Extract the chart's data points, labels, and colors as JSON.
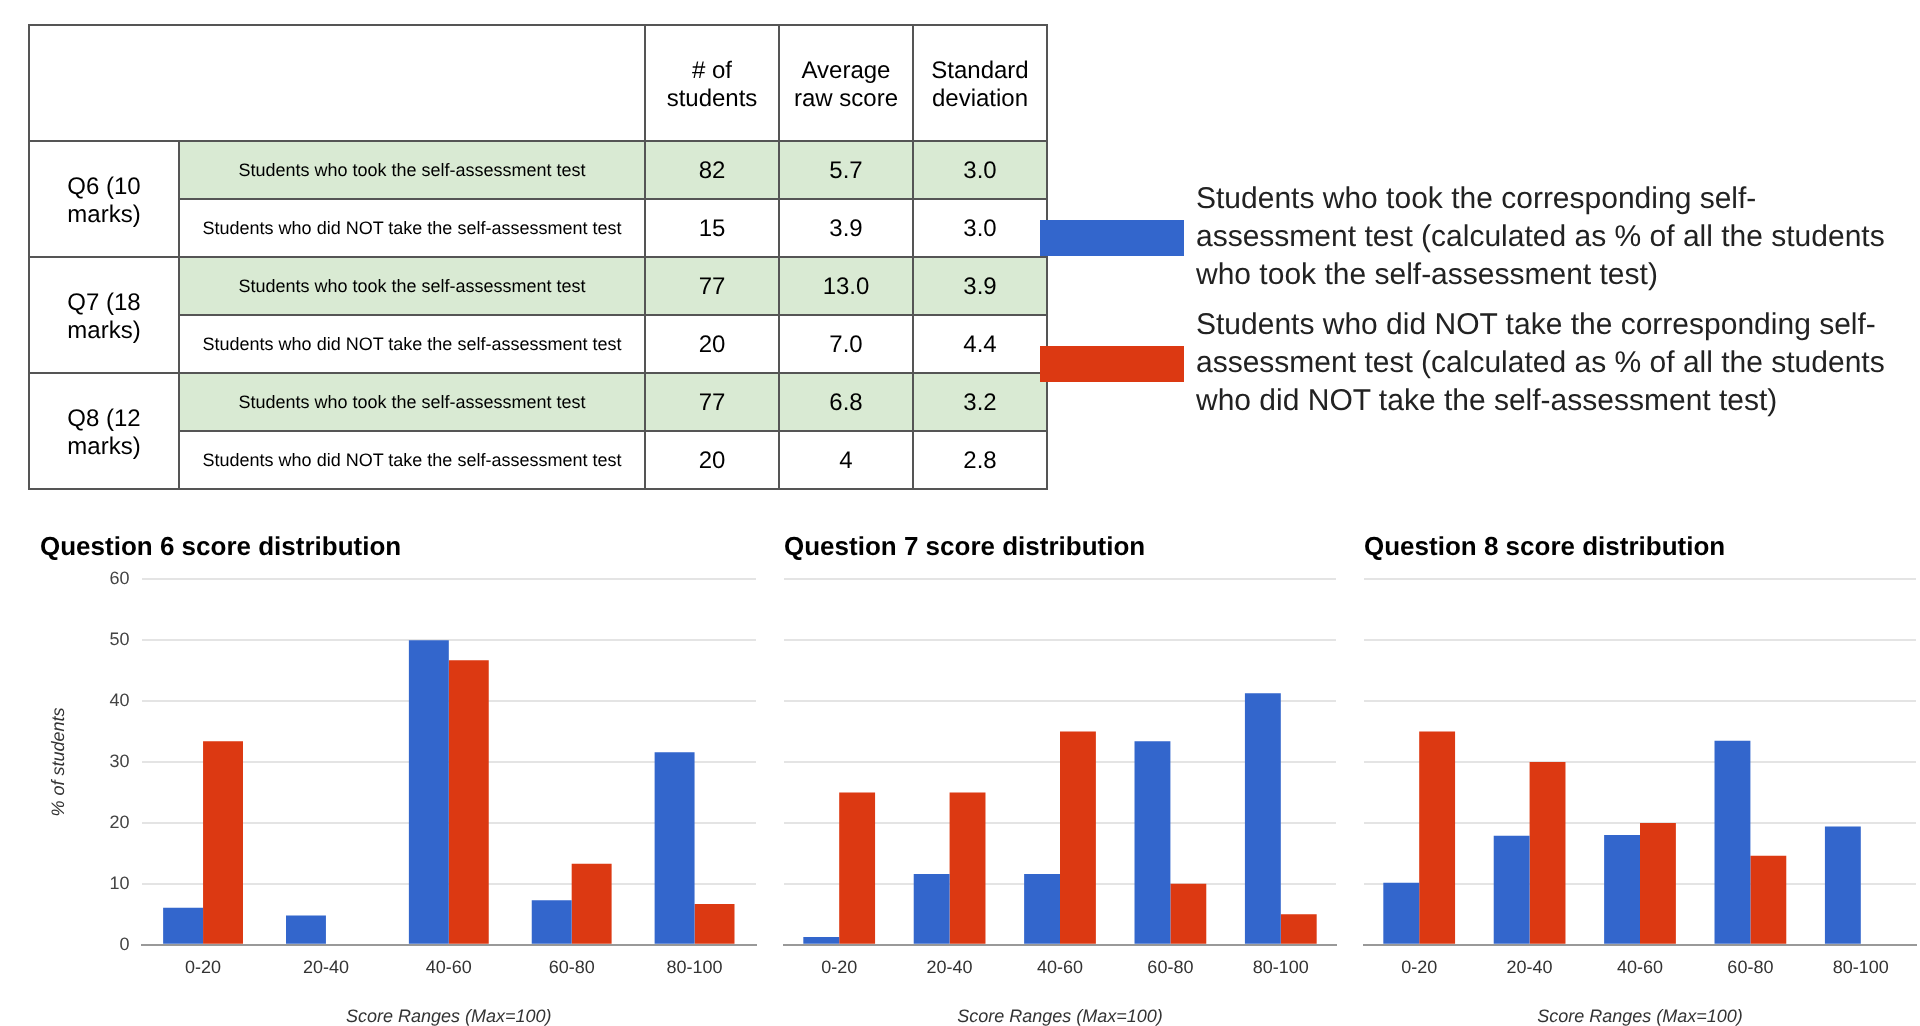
{
  "chart_data": [
    {
      "type": "heatmap",
      "categories": [
        "# of students",
        "Average raw score",
        "Standard deviation"
      ],
      "y_categories": [
        "Students who took the self-assessment test",
        "Students who did NOT take the self-assessment test",
        "Students who took the self-assessment test",
        "Students who did NOT take the self-assessment test",
        "Students who took the self-assessment test",
        "Students who did NOT take the self-assessment test"
      ],
      "y2_categories": [
        "Q6 (10 marks)",
        null,
        "Q7 (18 marks)",
        null,
        "Q8 (12 marks)",
        null
      ],
      "cells": [
        [
          82,
          5.7,
          3.0
        ],
        [
          15,
          3.9,
          3.0
        ],
        [
          77,
          13.0,
          3.9
        ],
        [
          20,
          7.0,
          4.4
        ],
        [
          77,
          6.8,
          3.2
        ],
        [
          20,
          4,
          2.8
        ]
      ],
      "cell_labels": [
        [
          "82",
          "5.7",
          "3.0"
        ],
        [
          "15",
          "3.9",
          "3.0"
        ],
        [
          "77",
          "13.0",
          "3.9"
        ],
        [
          "20",
          "7.0",
          "4.4"
        ],
        [
          "77",
          "6.8",
          "3.2"
        ],
        [
          "20",
          "4",
          "2.8"
        ]
      ]
    },
    {
      "type": "bar",
      "title": "Question 6 score distribution",
      "xlabel": "Score Ranges (Max=100)",
      "ylabel": "% of students",
      "categories": [
        "0-20",
        "20-40",
        "40-60",
        "60-80",
        "80-100"
      ],
      "series": [
        {
          "name": "Students who took the corresponding self-assessment test (calculated as % of all the students who took the self-assessment test)",
          "color": "#3366cc",
          "values": [
            6.1,
            4.8,
            50,
            7.3,
            31.6
          ]
        },
        {
          "name": "Students who did NOT take the corresponding self-assessment test (calculated as % of all the students who did NOT take the self-assessment test)",
          "color": "#dc3912",
          "values": [
            33.4,
            0,
            46.7,
            13.3,
            6.7
          ]
        }
      ],
      "ylim": [
        0,
        60
      ],
      "yticks": [
        0,
        10,
        20,
        30,
        40,
        50,
        60
      ],
      "grid": "y",
      "legend": "top right"
    },
    {
      "type": "bar",
      "title": "Question 7 score distribution",
      "xlabel": "Score Ranges (Max=100)",
      "categories": [
        "0-20",
        "20-40",
        "40-60",
        "60-80",
        "80-100"
      ],
      "series": [
        {
          "color": "#3366cc",
          "values": [
            1.3,
            11.6,
            11.6,
            33.4,
            41.3
          ]
        },
        {
          "color": "#dc3912",
          "values": [
            25,
            25,
            35,
            10,
            5
          ]
        }
      ],
      "ylim": [
        0,
        60
      ],
      "yticks": [
        0,
        10,
        20,
        30,
        40,
        50,
        60
      ],
      "grid": "y",
      "tick_labels": "x"
    },
    {
      "type": "bar",
      "title": "Question 8 score distribution",
      "xlabel": "Score Ranges (Max=100)",
      "categories": [
        "0-20",
        "20-40",
        "40-60",
        "60-80",
        "80-100"
      ],
      "series": [
        {
          "color": "#3366cc",
          "values": [
            10.2,
            17.9,
            18,
            33.5,
            19.4
          ]
        },
        {
          "color": "#dc3912",
          "values": [
            35,
            30,
            20,
            14.6,
            0
          ]
        }
      ],
      "ylim": [
        0,
        60
      ],
      "yticks": [
        0,
        10,
        20,
        30,
        40,
        50,
        60
      ],
      "grid": "y",
      "tick_labels": "x"
    }
  ]
}
